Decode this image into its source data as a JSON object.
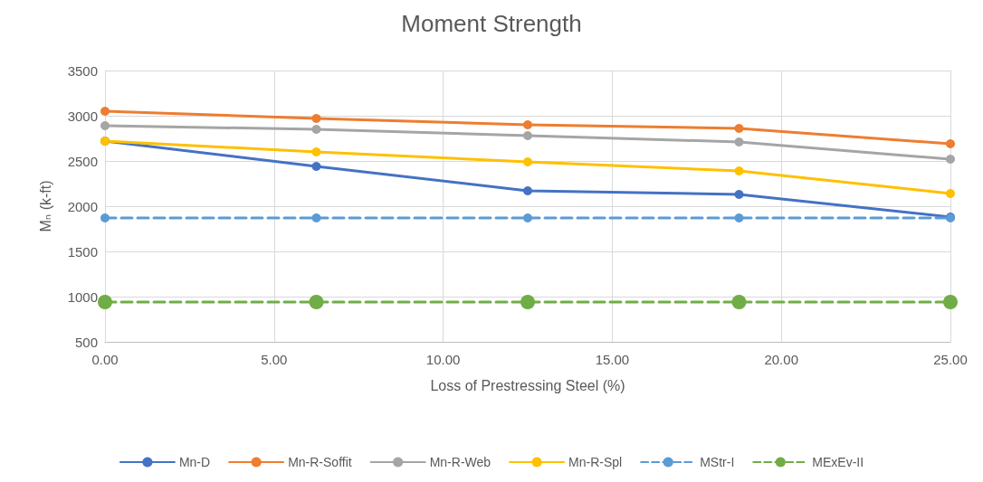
{
  "chart_data": {
    "type": "line",
    "title": "Moment Strength",
    "xlabel": "Loss of Prestressing Steel (%)",
    "ylabel": "Mₙ (k-ft)",
    "x": [
      0,
      6.25,
      12.5,
      18.75,
      25
    ],
    "series": [
      {
        "name": "Mn-D",
        "color": "#4472c4",
        "values": [
          2720,
          2440,
          2170,
          2130,
          1880
        ]
      },
      {
        "name": "Mn-R-Soffit",
        "color": "#ed7d31",
        "values": [
          3050,
          2970,
          2900,
          2860,
          2690
        ]
      },
      {
        "name": "Mn-R-Web",
        "color": "#a5a5a5",
        "values": [
          2890,
          2850,
          2780,
          2710,
          2520
        ]
      },
      {
        "name": "Mn-R-Spl",
        "color": "#ffc000",
        "values": [
          2720,
          2600,
          2490,
          2390,
          2140
        ]
      },
      {
        "name": "MStr-I",
        "color": "#5b9bd5",
        "values": [
          1870,
          1870,
          1870,
          1870,
          1870
        ],
        "line_style": "dashed"
      },
      {
        "name": "MExEv-II",
        "color": "#70ad47",
        "values": [
          940,
          940,
          940,
          940,
          940
        ],
        "line_style": "dashed"
      }
    ],
    "xlim": [
      0,
      25
    ],
    "xticks": [
      {
        "value": 0,
        "label": "0.00"
      },
      {
        "value": 5,
        "label": "5.00"
      },
      {
        "value": 10,
        "label": "10.00"
      },
      {
        "value": 15,
        "label": "15.00"
      },
      {
        "value": 20,
        "label": "20.00"
      },
      {
        "value": 25,
        "label": "25.00"
      }
    ],
    "ylim": [
      500,
      3500
    ],
    "yticks": [
      500,
      1000,
      1500,
      2000,
      2500,
      3000,
      3500
    ],
    "grid": true,
    "legend": "bottom",
    "marker": "circle",
    "line_style": "solid"
  }
}
